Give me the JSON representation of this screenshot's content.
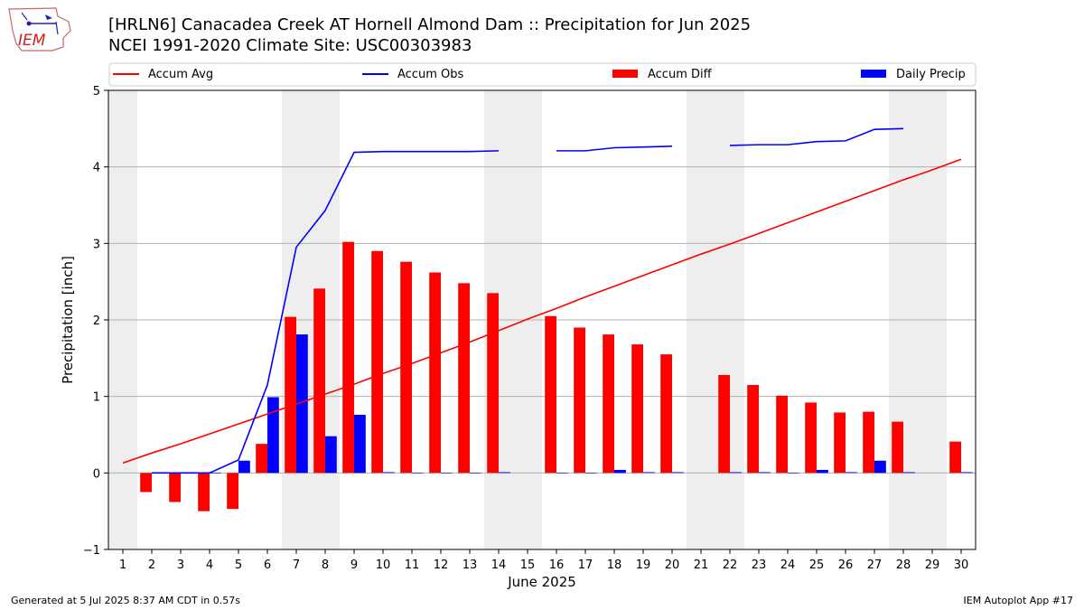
{
  "header": {
    "title_line1": "[HRLN6] Canacadea Creek  AT Hornell Almond Dam :: Precipitation for Jun 2025",
    "title_line2": "NCEI 1991-2020 Climate Site: USC00303983",
    "logo_text": "IEM"
  },
  "footer": {
    "generated": "Generated at 5 Jul 2025 8:37 AM CDT in 0.57s",
    "app": "IEM Autoplot App #17"
  },
  "chart_data": {
    "type": "bar",
    "xlabel": "June 2025",
    "ylabel": "Precipitation [inch]",
    "xlim": [
      0.5,
      30.5
    ],
    "ylim": [
      -1,
      5
    ],
    "yticks": [
      -1,
      0,
      1,
      2,
      3,
      4,
      5
    ],
    "grid": true,
    "legend_position": "top",
    "weekend_shading": [
      [
        0.5,
        1.5
      ],
      [
        6.5,
        8.5
      ],
      [
        13.5,
        15.5
      ],
      [
        20.5,
        22.5
      ],
      [
        27.5,
        29.5
      ]
    ],
    "colors": {
      "avg": "#ff0000",
      "obs": "#0000ff",
      "diff": "#ff0000",
      "daily": "#0000ff",
      "shade": "#eeeeee"
    },
    "categories": [
      1,
      2,
      3,
      4,
      5,
      6,
      7,
      8,
      9,
      10,
      11,
      12,
      13,
      14,
      15,
      16,
      17,
      18,
      19,
      20,
      21,
      22,
      23,
      24,
      25,
      26,
      27,
      28,
      29,
      30
    ],
    "series": [
      {
        "name": "Accum Avg",
        "kind": "line",
        "values": [
          0.13,
          0.26,
          0.38,
          0.51,
          0.64,
          0.77,
          0.9,
          1.03,
          1.16,
          1.3,
          1.43,
          1.57,
          1.71,
          1.86,
          2.01,
          2.15,
          2.3,
          2.44,
          2.58,
          2.72,
          2.86,
          2.99,
          3.13,
          3.27,
          3.41,
          3.55,
          3.69,
          3.83,
          3.96,
          4.1
        ]
      },
      {
        "name": "Accum Obs",
        "kind": "line",
        "values": [
          null,
          0.0,
          0.0,
          0.0,
          0.17,
          1.15,
          2.95,
          3.43,
          4.19,
          4.2,
          4.2,
          4.2,
          4.2,
          4.21,
          null,
          4.21,
          4.21,
          4.25,
          4.26,
          4.27,
          null,
          4.28,
          4.29,
          4.29,
          4.33,
          4.34,
          4.49,
          4.5,
          null,
          null
        ]
      },
      {
        "name": "Accum Diff",
        "kind": "bar",
        "values": [
          null,
          -0.25,
          -0.38,
          -0.5,
          -0.47,
          0.38,
          2.04,
          2.41,
          3.02,
          2.9,
          2.76,
          2.62,
          2.48,
          2.35,
          null,
          2.05,
          1.9,
          1.81,
          1.68,
          1.55,
          null,
          1.28,
          1.15,
          1.01,
          0.92,
          0.79,
          0.8,
          0.67,
          null,
          0.41
        ]
      },
      {
        "name": "Daily Precip",
        "kind": "bar",
        "values": [
          null,
          0.0,
          0.0,
          0.0,
          0.16,
          0.99,
          1.81,
          0.48,
          0.76,
          0.01,
          0.0,
          0.0,
          0.0,
          0.01,
          null,
          0.0,
          0.0,
          0.04,
          0.01,
          0.01,
          null,
          0.01,
          0.01,
          0.0,
          0.04,
          0.01,
          0.16,
          0.01,
          null,
          0.01
        ]
      }
    ]
  }
}
